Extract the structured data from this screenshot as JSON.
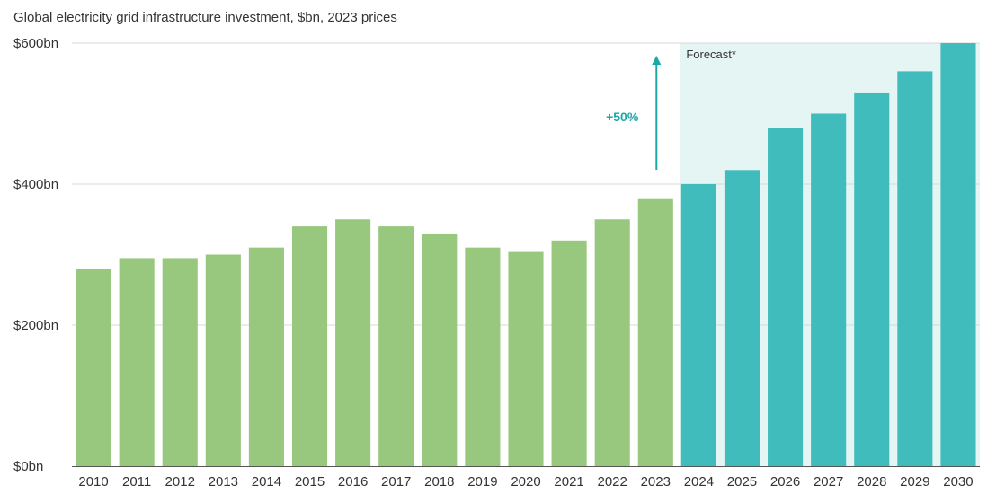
{
  "chart_data": {
    "type": "bar",
    "title": "Global electricity grid infrastructure investment, $bn, 2023 prices",
    "xlabel": "",
    "ylabel": "",
    "ylim": [
      0,
      600
    ],
    "yticks": [
      0,
      200,
      400,
      600
    ],
    "ytick_labels": [
      "$0bn",
      "$200bn",
      "$400bn",
      "$600bn"
    ],
    "grid": true,
    "categories": [
      "2010",
      "2011",
      "2012",
      "2013",
      "2014",
      "2015",
      "2016",
      "2017",
      "2018",
      "2019",
      "2020",
      "2021",
      "2022",
      "2023",
      "2024",
      "2025",
      "2026",
      "2027",
      "2028",
      "2029",
      "2030"
    ],
    "values": [
      280,
      295,
      295,
      300,
      310,
      340,
      350,
      340,
      330,
      310,
      305,
      320,
      350,
      380,
      400,
      420,
      480,
      500,
      530,
      560,
      600
    ],
    "forecast_start": "2024",
    "colors": {
      "historical": "#98c87e",
      "forecast": "#40bcbc",
      "forecast_shade": "#e5f5f4",
      "arrow": "#1aa9a7",
      "gridline": "#d9d9d9",
      "axis": "#555555"
    },
    "annotations": {
      "forecast_label": "Forecast*",
      "growth_label": "+50%"
    }
  }
}
